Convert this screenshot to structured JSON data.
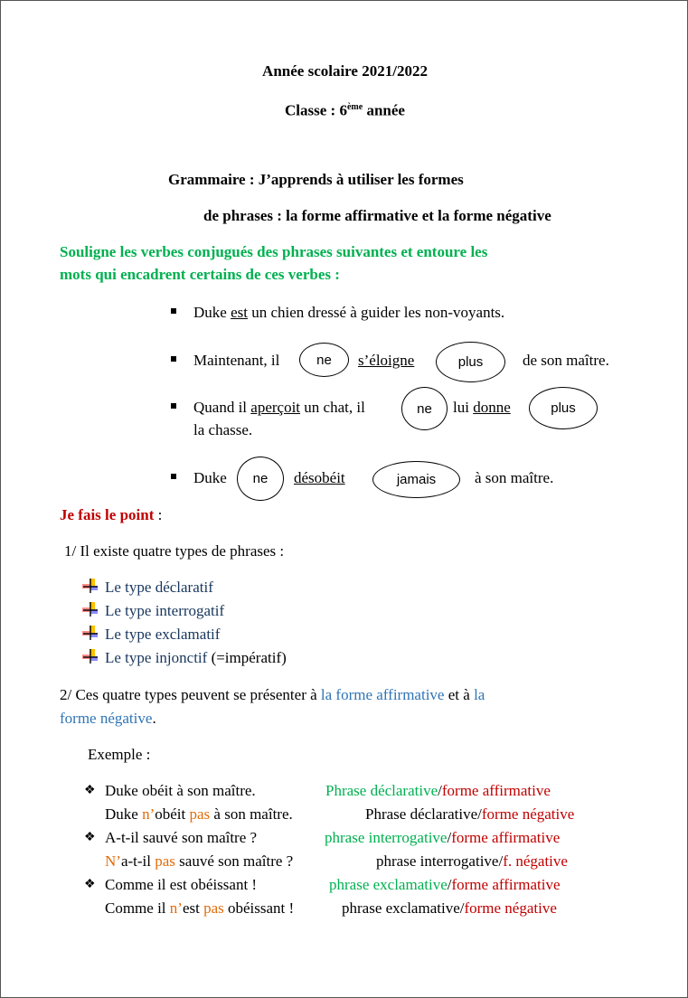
{
  "header": {
    "year": "Année scolaire 2021/2022",
    "class_pre": "Classe : 6",
    "class_sup": "ème",
    "class_post": " année",
    "title1": "Grammaire : J’apprends à utiliser les formes",
    "title2": "de phrases : la forme affirmative et la forme négative"
  },
  "instruction": [
    "Souligne les verbes conjugués des phrases suivantes et entoure les",
    "mots qui encadrent certains de ces verbes :"
  ],
  "sentences": {
    "s1": [
      "Duke ",
      "est",
      " un chien dressé à guider les non-voyants."
    ],
    "s2": [
      "Maintenant, il",
      "ne",
      "s’éloigne",
      "plus",
      "de son maître."
    ],
    "s3": [
      "Quand il ",
      "aperçoit",
      " un chat, il",
      "ne",
      "lui ",
      "donne",
      "plus",
      "la chasse."
    ],
    "s4": [
      "Duke",
      "ne",
      "désobéit",
      "jamais",
      "à son maître."
    ]
  },
  "point": {
    "title": "Je fais le point",
    "colon": " :",
    "p1": "1/  Il existe quatre types de phrases :",
    "types": [
      "Le type déclaratif",
      "Le type interrogatif",
      "Le type exclamatif",
      "Le type injonctif"
    ],
    "types_extra": " (=impératif)",
    "p2": [
      "2/ Ces quatre types peuvent se présenter à ",
      "la forme affirmative",
      " et à ",
      "la",
      "forme négative",
      "."
    ],
    "example_label": "Exemple :"
  },
  "examples": [
    {
      "a": [
        "Duke obéit à son maître."
      ],
      "b": [
        "Phrase déclarative",
        "/",
        "forme affirmative"
      ]
    },
    {
      "a": [
        "Duke ",
        "n’",
        "obéit ",
        "pas",
        " à son maître."
      ],
      "b": [
        "Phrase déclarative/",
        "forme négative"
      ]
    },
    {
      "a": [
        "A-t-il sauvé son maître ?"
      ],
      "b": [
        "phrase interrogative",
        "/",
        "forme affirmative"
      ]
    },
    {
      "a": [
        "N’",
        "a-t-il ",
        "pas",
        " sauvé son maître ?"
      ],
      "b": [
        "phrase interrogative/",
        "f. négative"
      ]
    },
    {
      "a": [
        "Comme il est obéissant !"
      ],
      "b": [
        "phrase exclamative",
        "/",
        "forme affirmative"
      ]
    },
    {
      "a": [
        "Comme il ",
        "n’",
        "est ",
        "pas",
        " obéissant !"
      ],
      "b": [
        "phrase exclamative/",
        "forme négative"
      ]
    }
  ],
  "colors": {
    "green": "#00b050",
    "red": "#c00000",
    "orange": "#e36c09",
    "blue": "#2e74b5",
    "navy": "#17365d"
  }
}
